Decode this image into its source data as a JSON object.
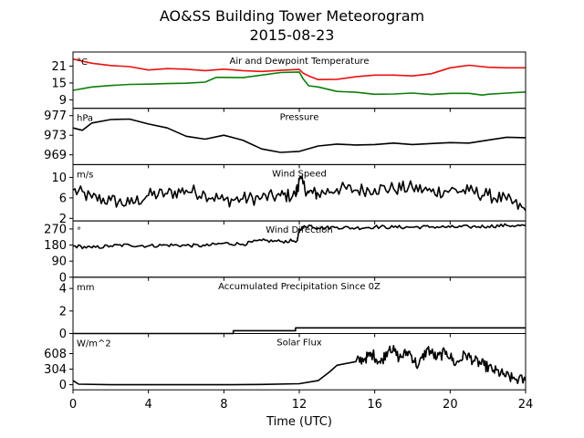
{
  "chart_data": {
    "type": "line",
    "title": "AO&SS Building Tower Meteorogram",
    "subtitle": "2015-08-23",
    "xlabel": "Time (UTC)",
    "x_ticks": [
      "0",
      "4",
      "8",
      "12",
      "16",
      "20",
      "24"
    ],
    "xlim": [
      0,
      24
    ],
    "grid": false,
    "colors": {
      "temperature": "#e8110f",
      "dewpoint": "#0a7f0a",
      "line": "#000000"
    },
    "panels": [
      {
        "title": "Air and Dewpoint Temperature",
        "unit": "°C",
        "ylim": [
          6,
          26
        ],
        "y_ticks": [
          9,
          15,
          21
        ],
        "series": [
          {
            "key": "temperature",
            "color": "#e8110f",
            "points": [
              [
                0,
                23.5
              ],
              [
                1,
                22
              ],
              [
                2,
                21.2
              ],
              [
                3,
                20.8
              ],
              [
                4,
                19.6
              ],
              [
                5,
                20.1
              ],
              [
                6,
                19.9
              ],
              [
                7,
                19.4
              ],
              [
                8,
                19.9
              ],
              [
                9,
                19.4
              ],
              [
                10,
                19.1
              ],
              [
                11,
                19.5
              ],
              [
                12,
                19.8
              ],
              [
                12.2,
                18.5
              ],
              [
                12.5,
                17.5
              ],
              [
                13,
                16.2
              ],
              [
                14,
                16.3
              ],
              [
                15,
                17.2
              ],
              [
                16,
                17.8
              ],
              [
                17,
                17.8
              ],
              [
                18,
                17.5
              ],
              [
                19,
                18.3
              ],
              [
                20,
                20.4
              ],
              [
                21,
                21.3
              ],
              [
                22,
                20.6
              ],
              [
                23,
                20.4
              ],
              [
                24,
                20.4
              ]
            ]
          },
          {
            "key": "dewpoint",
            "color": "#0a7f0a",
            "points": [
              [
                0,
                12.4
              ],
              [
                1,
                13.6
              ],
              [
                2,
                14.1
              ],
              [
                3,
                14.5
              ],
              [
                4,
                14.6
              ],
              [
                5,
                14.8
              ],
              [
                6,
                14.9
              ],
              [
                7,
                15.3
              ],
              [
                7.6,
                17
              ],
              [
                8,
                17
              ],
              [
                9,
                16.9
              ],
              [
                10,
                17.8
              ],
              [
                11,
                18.7
              ],
              [
                12,
                18.9
              ],
              [
                12.2,
                16.5
              ],
              [
                12.5,
                14
              ],
              [
                13,
                13.6
              ],
              [
                14,
                12
              ],
              [
                15,
                11.7
              ],
              [
                16,
                11
              ],
              [
                17,
                11.1
              ],
              [
                18,
                11.4
              ],
              [
                19,
                10.9
              ],
              [
                20,
                11.3
              ],
              [
                21,
                11.3
              ],
              [
                21.7,
                10.7
              ],
              [
                22,
                11
              ],
              [
                23,
                11.4
              ],
              [
                24,
                11.8
              ]
            ]
          }
        ]
      },
      {
        "title": "Pressure",
        "unit": "hPa",
        "ylim": [
          967,
          978.5
        ],
        "y_ticks": [
          969,
          973,
          977
        ],
        "series": [
          {
            "key": "pressure",
            "color": "#000000",
            "points": [
              [
                0,
                974.5
              ],
              [
                0.5,
                974
              ],
              [
                1,
                975.5
              ],
              [
                2,
                976.2
              ],
              [
                3,
                976.3
              ],
              [
                4,
                975.3
              ],
              [
                5,
                974.5
              ],
              [
                6,
                972.8
              ],
              [
                7,
                972.2
              ],
              [
                8,
                973
              ],
              [
                9,
                972
              ],
              [
                10,
                970.2
              ],
              [
                11,
                969.5
              ],
              [
                12,
                969.7
              ],
              [
                13,
                970.8
              ],
              [
                14,
                971.2
              ],
              [
                15,
                971
              ],
              [
                16,
                971.1
              ],
              [
                17,
                971.4
              ],
              [
                18,
                971.1
              ],
              [
                19,
                971.3
              ],
              [
                20,
                971.5
              ],
              [
                21,
                971.4
              ],
              [
                22,
                972
              ],
              [
                23,
                972.6
              ],
              [
                24,
                972.5
              ]
            ]
          }
        ]
      },
      {
        "title": "Wind Speed",
        "unit": "m/s",
        "ylim": [
          1.5,
          12.5
        ],
        "y_ticks": [
          2,
          6,
          10
        ],
        "series": [
          {
            "key": "wind_speed",
            "color": "#000000",
            "points": [
              [
                0,
                7.5
              ],
              [
                1,
                6
              ],
              [
                2,
                5.5
              ],
              [
                3,
                4.8
              ],
              [
                4,
                6.5
              ],
              [
                5,
                6.8
              ],
              [
                6,
                7.5
              ],
              [
                7,
                6.8
              ],
              [
                8,
                5.5
              ],
              [
                9,
                5.8
              ],
              [
                10,
                6
              ],
              [
                11,
                6.4
              ],
              [
                11.8,
                6.5
              ],
              [
                12,
                9.5
              ],
              [
                12.5,
                7
              ],
              [
                13,
                6.8
              ],
              [
                14,
                7.8
              ],
              [
                15,
                7.5
              ],
              [
                16,
                7.8
              ],
              [
                17,
                7.8
              ],
              [
                18,
                8
              ],
              [
                19,
                7.2
              ],
              [
                20,
                7.5
              ],
              [
                21,
                7.3
              ],
              [
                22,
                6.5
              ],
              [
                23,
                5.6
              ],
              [
                24,
                3.5
              ]
            ]
          }
        ]
      },
      {
        "title": "Wind Direction",
        "unit": "°",
        "ylim": [
          0,
          315
        ],
        "y_ticks": [
          0,
          90,
          180,
          270
        ],
        "series": [
          {
            "key": "wind_direction",
            "color": "#000000",
            "points": [
              [
                0,
                175
              ],
              [
                1,
                165
              ],
              [
                2,
                175
              ],
              [
                3,
                180
              ],
              [
                4,
                175
              ],
              [
                5,
                180
              ],
              [
                6,
                178
              ],
              [
                7,
                176
              ],
              [
                8,
                190
              ],
              [
                9,
                185
              ],
              [
                10,
                205
              ],
              [
                11,
                200
              ],
              [
                11.9,
                205
              ],
              [
                12,
                270
              ],
              [
                12.5,
                290
              ],
              [
                13,
                275
              ],
              [
                14,
                280
              ],
              [
                15,
                275
              ],
              [
                16,
                282
              ],
              [
                17,
                280
              ],
              [
                18,
                280
              ],
              [
                19,
                282
              ],
              [
                20,
                280
              ],
              [
                21,
                282
              ],
              [
                22,
                285
              ],
              [
                23,
                290
              ],
              [
                24,
                288
              ]
            ]
          }
        ]
      },
      {
        "title": "Accumulated Precipitation Since 0Z",
        "unit": "mm",
        "ylim": [
          0,
          5
        ],
        "y_ticks": [
          0,
          2,
          4
        ],
        "series": [
          {
            "key": "precipitation",
            "color": "#000000",
            "points": [
              [
                0,
                0
              ],
              [
                8.5,
                0
              ],
              [
                8.5,
                0.25
              ],
              [
                11.8,
                0.25
              ],
              [
                11.8,
                0.5
              ],
              [
                24,
                0.5
              ]
            ]
          }
        ]
      },
      {
        "title": "Solar Flux",
        "unit": "W/m^2",
        "ylim": [
          -100,
          1000
        ],
        "y_ticks": [
          0,
          304,
          608
        ],
        "series": [
          {
            "key": "solar_flux",
            "color": "#000000",
            "points": [
              [
                0,
                80
              ],
              [
                0.3,
                10
              ],
              [
                2,
                0
              ],
              [
                8,
                0
              ],
              [
                10,
                5
              ],
              [
                12,
                20
              ],
              [
                13,
                80
              ],
              [
                13.6,
                250
              ],
              [
                14,
                380
              ],
              [
                15,
                450
              ],
              [
                15.5,
                520
              ],
              [
                15.9,
                600
              ],
              [
                16.3,
                420
              ],
              [
                16.8,
                750
              ],
              [
                17.3,
                520
              ],
              [
                17.8,
                650
              ],
              [
                18.3,
                360
              ],
              [
                18.8,
                700
              ],
              [
                19.3,
                520
              ],
              [
                19.8,
                650
              ],
              [
                20.3,
                400
              ],
              [
                20.8,
                600
              ],
              [
                21.3,
                460
              ],
              [
                21.8,
                380
              ],
              [
                22.3,
                280
              ],
              [
                22.8,
                200
              ],
              [
                23.3,
                120
              ],
              [
                24,
                80
              ]
            ]
          }
        ]
      }
    ]
  }
}
